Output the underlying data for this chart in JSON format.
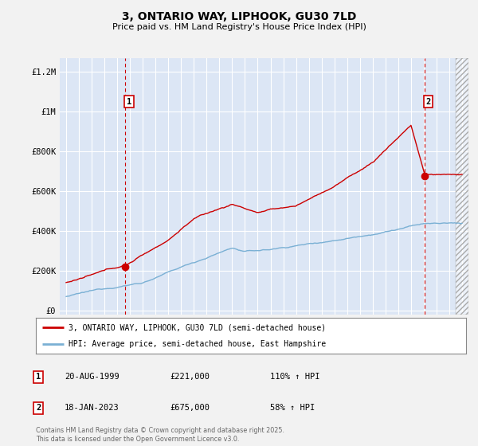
{
  "title": "3, ONTARIO WAY, LIPHOOK, GU30 7LD",
  "subtitle": "Price paid vs. HM Land Registry's House Price Index (HPI)",
  "background_color": "#f2f2f2",
  "plot_bg_color": "#dce6f5",
  "grid_color": "#ffffff",
  "yticks": [
    0,
    200000,
    400000,
    600000,
    800000,
    1000000,
    1200000
  ],
  "ylabels": [
    "£0",
    "£200K",
    "£400K",
    "£600K",
    "£800K",
    "£1M",
    "£1.2M"
  ],
  "xmin": 1994.5,
  "xmax": 2026.5,
  "ymin": -20000,
  "ymax": 1270000,
  "sale1_x": 1999.636,
  "sale1_y": 221000,
  "sale2_x": 2023.05,
  "sale2_y": 675000,
  "red_line_color": "#cc0000",
  "blue_line_color": "#7ab0d4",
  "dashed_red_color": "#cc0000",
  "legend_label1": "3, ONTARIO WAY, LIPHOOK, GU30 7LD (semi-detached house)",
  "legend_label2": "HPI: Average price, semi-detached house, East Hampshire",
  "annotation1_date": "20-AUG-1999",
  "annotation1_price": "£221,000",
  "annotation1_hpi": "110% ↑ HPI",
  "annotation2_date": "18-JAN-2023",
  "annotation2_price": "£675,000",
  "annotation2_hpi": "58% ↑ HPI",
  "footer": "Contains HM Land Registry data © Crown copyright and database right 2025.\nThis data is licensed under the Open Government Licence v3.0."
}
